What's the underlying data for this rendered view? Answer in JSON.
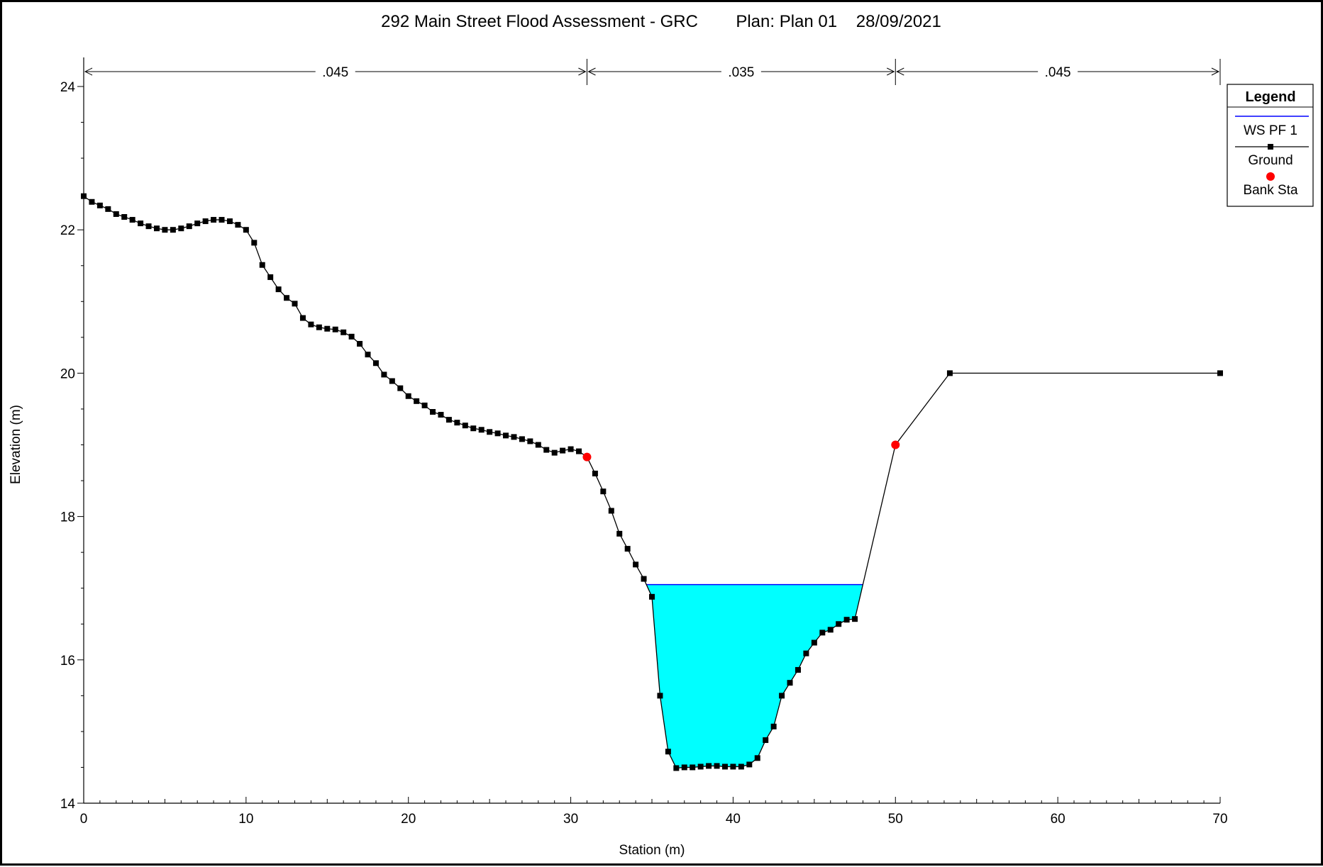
{
  "chart_data": {
    "type": "line",
    "title": "292 Main Street Flood Assessment - GRC        Plan: Plan 01    28/09/2021",
    "xlabel": "Station (m)",
    "ylabel": "Elevation (m)",
    "xlim": [
      0,
      70
    ],
    "ylim": [
      14,
      24
    ],
    "x_ticks": [
      "0",
      "10",
      "20",
      "30",
      "40",
      "50",
      "60",
      "70"
    ],
    "y_ticks": [
      "14",
      "16",
      "18",
      "20",
      "22",
      "24"
    ],
    "grid": false,
    "legend_position": "top-right",
    "legend": {
      "title": "Legend",
      "entries": [
        {
          "name": "WS PF 1",
          "color": "#0000ff",
          "marker": "none"
        },
        {
          "name": "Ground",
          "color": "#000000",
          "marker": "square"
        },
        {
          "name": "Bank Sta",
          "color": "#ff0000",
          "marker": "circle"
        }
      ]
    },
    "mannings_n": [
      {
        "label": ".045",
        "from": 0,
        "to": 31
      },
      {
        "label": ".035",
        "from": 31,
        "to": 50
      },
      {
        "label": ".045",
        "from": 50,
        "to": 70
      }
    ],
    "water_surface": {
      "name": "WS PF 1",
      "elevation": 17.05,
      "fill_color": "#00ffff",
      "line_color": "#0000ff"
    },
    "bank_stations": [
      {
        "x": 31.0,
        "y": 18.83
      },
      {
        "x": 50.0,
        "y": 19.0
      }
    ],
    "series": [
      {
        "name": "Ground",
        "color": "#000000",
        "points": [
          [
            0.0,
            22.47
          ],
          [
            0.5,
            22.39
          ],
          [
            1.0,
            22.34
          ],
          [
            1.5,
            22.29
          ],
          [
            2.0,
            22.22
          ],
          [
            2.5,
            22.18
          ],
          [
            3.0,
            22.14
          ],
          [
            3.5,
            22.09
          ],
          [
            4.0,
            22.05
          ],
          [
            4.5,
            22.02
          ],
          [
            5.0,
            22.0
          ],
          [
            5.5,
            22.0
          ],
          [
            6.0,
            22.02
          ],
          [
            6.5,
            22.05
          ],
          [
            7.0,
            22.09
          ],
          [
            7.5,
            22.12
          ],
          [
            8.0,
            22.14
          ],
          [
            8.5,
            22.14
          ],
          [
            9.0,
            22.12
          ],
          [
            9.5,
            22.07
          ],
          [
            10.0,
            22.0
          ],
          [
            10.5,
            21.82
          ],
          [
            11.0,
            21.51
          ],
          [
            11.5,
            21.34
          ],
          [
            12.0,
            21.17
          ],
          [
            12.5,
            21.05
          ],
          [
            13.0,
            20.97
          ],
          [
            13.5,
            20.77
          ],
          [
            14.0,
            20.68
          ],
          [
            14.5,
            20.64
          ],
          [
            15.0,
            20.62
          ],
          [
            15.5,
            20.61
          ],
          [
            16.0,
            20.57
          ],
          [
            16.5,
            20.51
          ],
          [
            17.0,
            20.41
          ],
          [
            17.5,
            20.26
          ],
          [
            18.0,
            20.14
          ],
          [
            18.5,
            19.98
          ],
          [
            19.0,
            19.89
          ],
          [
            19.5,
            19.79
          ],
          [
            20.0,
            19.68
          ],
          [
            20.5,
            19.61
          ],
          [
            21.0,
            19.55
          ],
          [
            21.5,
            19.46
          ],
          [
            22.0,
            19.42
          ],
          [
            22.5,
            19.35
          ],
          [
            23.0,
            19.31
          ],
          [
            23.5,
            19.27
          ],
          [
            24.0,
            19.23
          ],
          [
            24.5,
            19.21
          ],
          [
            25.0,
            19.18
          ],
          [
            25.5,
            19.16
          ],
          [
            26.0,
            19.13
          ],
          [
            26.5,
            19.11
          ],
          [
            27.0,
            19.08
          ],
          [
            27.5,
            19.05
          ],
          [
            28.0,
            19.0
          ],
          [
            28.5,
            18.93
          ],
          [
            29.0,
            18.89
          ],
          [
            29.5,
            18.92
          ],
          [
            30.0,
            18.94
          ],
          [
            30.5,
            18.91
          ],
          [
            31.0,
            18.83
          ],
          [
            31.5,
            18.6
          ],
          [
            32.0,
            18.35
          ],
          [
            32.5,
            18.08
          ],
          [
            33.0,
            17.76
          ],
          [
            33.5,
            17.55
          ],
          [
            34.0,
            17.33
          ],
          [
            34.5,
            17.13
          ],
          [
            35.0,
            16.88
          ],
          [
            35.5,
            15.5
          ],
          [
            36.0,
            14.72
          ],
          [
            36.5,
            14.49
          ],
          [
            37.0,
            14.5
          ],
          [
            37.5,
            14.5
          ],
          [
            38.0,
            14.51
          ],
          [
            38.5,
            14.52
          ],
          [
            39.0,
            14.52
          ],
          [
            39.5,
            14.51
          ],
          [
            40.0,
            14.51
          ],
          [
            40.5,
            14.51
          ],
          [
            41.0,
            14.54
          ],
          [
            41.5,
            14.63
          ],
          [
            42.0,
            14.88
          ],
          [
            42.5,
            15.07
          ],
          [
            43.0,
            15.5
          ],
          [
            43.5,
            15.68
          ],
          [
            44.0,
            15.86
          ],
          [
            44.5,
            16.09
          ],
          [
            45.0,
            16.24
          ],
          [
            45.5,
            16.38
          ],
          [
            46.0,
            16.42
          ],
          [
            46.5,
            16.5
          ],
          [
            47.0,
            16.56
          ],
          [
            47.5,
            16.57
          ],
          [
            50.0,
            19.0
          ],
          [
            53.35,
            20.0
          ],
          [
            70.0,
            20.0
          ]
        ]
      }
    ]
  }
}
